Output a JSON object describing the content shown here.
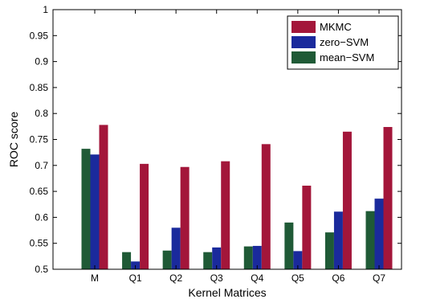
{
  "chart_data": {
    "type": "bar",
    "xlabel": "Kernel Matrices",
    "ylabel": "ROC score",
    "categories": [
      "M",
      "Q1",
      "Q2",
      "Q3",
      "Q4",
      "Q5",
      "Q6",
      "Q7"
    ],
    "series": [
      {
        "name": "mean−SVM",
        "color": "#1f5a36",
        "values": [
          0.732,
          0.533,
          0.536,
          0.533,
          0.544,
          0.59,
          0.571,
          0.612
        ]
      },
      {
        "name": "zero−SVM",
        "color": "#1a2a9c",
        "values": [
          0.721,
          0.515,
          0.58,
          0.542,
          0.545,
          0.535,
          0.611,
          0.636
        ]
      },
      {
        "name": "MKMC",
        "color": "#a3163a",
        "values": [
          0.778,
          0.703,
          0.697,
          0.708,
          0.741,
          0.661,
          0.765,
          0.774
        ]
      }
    ],
    "legend_order": [
      "MKMC",
      "zero−SVM",
      "mean−SVM"
    ],
    "ylim": [
      0.5,
      1.0
    ],
    "yticks": [
      "0.5",
      "0.55",
      "0.6",
      "0.65",
      "0.7",
      "0.75",
      "0.8",
      "0.85",
      "0.9",
      "0.95",
      "1"
    ],
    "ytick_values": [
      0.5,
      0.55,
      0.6,
      0.65,
      0.7,
      0.75,
      0.8,
      0.85,
      0.9,
      0.95,
      1.0
    ],
    "legend_position": "top-right",
    "grid": false
  }
}
